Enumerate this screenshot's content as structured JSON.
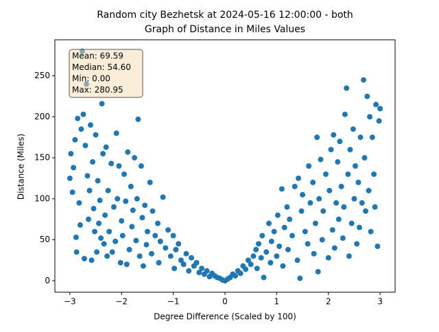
{
  "chart_data": {
    "type": "scatter",
    "title": [
      "Random city Bezhetsk at 2024-05-16 12:00:00  - both",
      "Graph of Distance in Miles Values"
    ],
    "xlabel": "Degree Difference (Scaled by 100)",
    "ylabel": "Distance (Miles)",
    "stats": [
      "Mean: 69.59",
      "Median: 54.60",
      "Min: 0.00",
      "Max: 280.95"
    ],
    "color": "#1f77b4",
    "xlim": [
      -3.29,
      3.29
    ],
    "ylim": [
      -14,
      294
    ],
    "xticks": [
      {
        "value": -3,
        "label": "−3"
      },
      {
        "value": -2,
        "label": "−2"
      },
      {
        "value": -1,
        "label": "−1"
      },
      0,
      1,
      2,
      3
    ],
    "yticks": [
      0,
      50,
      100,
      150,
      200,
      250
    ],
    "x": [
      -3,
      -2.98,
      -2.95,
      -2.93,
      -2.9,
      -2.88,
      -2.87,
      -2.85,
      -2.82,
      -2.8,
      -2.78,
      -2.76,
      -2.74,
      -2.72,
      -2.7,
      -2.68,
      -2.66,
      -2.64,
      -2.62,
      -2.6,
      -2.58,
      -2.56,
      -2.54,
      -2.52,
      -2.5,
      -2.48,
      -2.46,
      -2.44,
      -2.42,
      -2.4,
      -2.38,
      -2.36,
      -2.34,
      -2.32,
      -2.3,
      -2.28,
      -2.26,
      -2.24,
      -2.2,
      -2.18,
      -2.15,
      -2.12,
      -2.1,
      -2.08,
      -2.05,
      -2.02,
      -2.0,
      -1.98,
      -1.95,
      -1.92,
      -1.9,
      -1.88,
      -1.85,
      -1.82,
      -1.8,
      -1.78,
      -1.75,
      -1.72,
      -1.7,
      -1.68,
      -1.65,
      -1.62,
      -1.6,
      -1.58,
      -1.55,
      -1.52,
      -1.5,
      -1.45,
      -1.42,
      -1.4,
      -1.35,
      -1.3,
      -1.28,
      -1.25,
      -1.2,
      -1.15,
      -1.1,
      -1.05,
      -1.0,
      -0.98,
      -0.95,
      -0.9,
      -0.85,
      -0.8,
      -0.75,
      -0.7,
      -0.65,
      -0.6,
      -0.55,
      -0.5,
      -0.45,
      -0.4,
      -0.35,
      -0.3,
      -0.25,
      -0.2,
      -0.15,
      -0.1,
      -0.05,
      0,
      0.05,
      0.1,
      0.15,
      0.2,
      0.25,
      0.3,
      0.35,
      0.4,
      0.45,
      0.5,
      0.55,
      0.6,
      0.62,
      0.65,
      0.7,
      0.72,
      0.75,
      0.8,
      0.85,
      0.88,
      0.9,
      0.95,
      1.0,
      1.02,
      1.05,
      1.1,
      1.12,
      1.15,
      1.2,
      1.22,
      1.25,
      1.3,
      1.35,
      1.4,
      1.42,
      1.45,
      1.48,
      1.5,
      1.55,
      1.6,
      1.62,
      1.65,
      1.7,
      1.72,
      1.75,
      1.78,
      1.8,
      1.82,
      1.85,
      1.88,
      1.9,
      1.95,
      2.0,
      2.02,
      2.05,
      2.08,
      2.1,
      2.12,
      2.15,
      2.18,
      2.2,
      2.22,
      2.25,
      2.28,
      2.3,
      2.32,
      2.35,
      2.38,
      2.4,
      2.42,
      2.45,
      2.48,
      2.5,
      2.52,
      2.55,
      2.58,
      2.6,
      2.62,
      2.65,
      2.68,
      2.7,
      2.72,
      2.75,
      2.78,
      2.8,
      2.82,
      2.85,
      2.88,
      2.9,
      2.92,
      2.95,
      2.98,
      3.0
    ],
    "values": [
      125,
      155,
      108,
      138,
      172,
      53,
      35,
      198,
      95,
      68,
      185,
      280,
      203,
      27,
      165,
      240,
      128,
      75,
      110,
      190,
      25,
      145,
      88,
      60,
      178,
      35,
      122,
      70,
      98,
      52,
      216,
      155,
      45,
      80,
      163,
      30,
      110,
      60,
      143,
      35,
      90,
      48,
      180,
      100,
      140,
      22,
      73,
      55,
      130,
      97,
      20,
      157,
      38,
      115,
      66,
      86,
      150,
      49,
      100,
      197,
      30,
      140,
      77,
      18,
      92,
      44,
      60,
      120,
      33,
      85,
      55,
      70,
      22,
      48,
      102,
      40,
      62,
      30,
      55,
      15,
      38,
      45,
      25,
      20,
      33,
      12,
      28,
      18,
      22,
      10,
      15,
      8,
      12,
      5,
      9,
      6,
      4,
      3,
      1,
      0,
      2,
      4,
      8,
      6,
      12,
      9,
      18,
      14,
      25,
      20,
      30,
      38,
      15,
      45,
      28,
      55,
      4,
      35,
      70,
      22,
      48,
      60,
      30,
      80,
      42,
      112,
      18,
      65,
      90,
      38,
      75,
      55,
      115,
      25,
      125,
      3,
      85,
      105,
      60,
      45,
      140,
      95,
      120,
      33,
      70,
      175,
      11,
      100,
      148,
      50,
      85,
      130,
      28,
      110,
      160,
      62,
      178,
      40,
      95,
      145,
      75,
      170,
      115,
      52,
      90,
      203,
      235,
      130,
      30,
      160,
      70,
      185,
      100,
      140,
      45,
      120,
      65,
      175,
      95,
      245,
      150,
      85,
      225,
      110,
      200,
      60,
      175,
      130,
      90,
      215,
      42,
      195,
      210
    ]
  }
}
